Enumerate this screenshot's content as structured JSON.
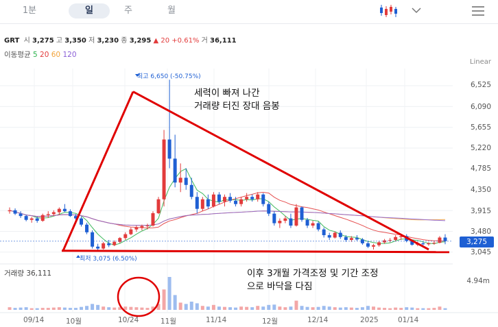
{
  "toolbar": {
    "tabs": [
      "1분",
      "일",
      "주",
      "월"
    ],
    "active": "일",
    "chart_type_icon": "candlestick-icon",
    "dropdown_icon": "chevron-down-icon",
    "menu_icon": "hamburger-icon"
  },
  "info": {
    "ticker": "GRT",
    "open_label": "시",
    "open": "3,275",
    "high_label": "고",
    "high": "3,350",
    "low_label": "저",
    "low": "3,230",
    "close_label": "종",
    "close": "3,295",
    "change": "▲ 20 +0.61%",
    "volume_label": "거",
    "volume": "36,111"
  },
  "ma_legend": {
    "title": "이동평균",
    "periods": [
      "5",
      "20",
      "60",
      "120"
    ],
    "colors": [
      "#2bb24c",
      "#e23b3b",
      "#f2a33a",
      "#8a5fd6"
    ]
  },
  "scale_mode": "Linear",
  "current_price": "3,275",
  "volume_header": "거래량 36,111",
  "volume_scale": "4.94m",
  "highest_label": "최고 6,650 (-50.75%)",
  "lowest_label": "최저 3,075 (6.50%)",
  "annotations": {
    "top": [
      "세력이 빠져 나간",
      "거래량 터진 장대 음봉"
    ],
    "bottom": [
      "이후 3개월 가격조정 및 기간 조정",
      "으로 바닥을 다짐"
    ]
  },
  "chart_data": {
    "type": "candlestick",
    "yticks": [
      "6,525",
      "6,090",
      "5,655",
      "5,220",
      "4,785",
      "4,350",
      "3,915",
      "3,480",
      "3,045"
    ],
    "ylim": [
      2900,
      6800
    ],
    "xticks": [
      "09/14",
      "10월",
      "10/24",
      "11월",
      "11/14",
      "12월",
      "12/14",
      "2025",
      "01/14"
    ],
    "candles_ohlc": [
      [
        3900,
        3980,
        3850,
        3920
      ],
      [
        3920,
        3960,
        3820,
        3850
      ],
      [
        3850,
        3900,
        3760,
        3800
      ],
      [
        3800,
        3830,
        3690,
        3720
      ],
      [
        3720,
        3780,
        3660,
        3750
      ],
      [
        3750,
        3790,
        3660,
        3700
      ],
      [
        3700,
        3850,
        3680,
        3820
      ],
      [
        3820,
        3900,
        3760,
        3840
      ],
      [
        3840,
        3920,
        3800,
        3880
      ],
      [
        3880,
        3980,
        3820,
        3950
      ],
      [
        3950,
        4050,
        3880,
        3900
      ],
      [
        3900,
        3940,
        3780,
        3800
      ],
      [
        3800,
        3840,
        3700,
        3750
      ],
      [
        3750,
        3790,
        3580,
        3620
      ],
      [
        3620,
        3660,
        3420,
        3460
      ],
      [
        3460,
        3500,
        3120,
        3160
      ],
      [
        3160,
        3220,
        3075,
        3120
      ],
      [
        3120,
        3260,
        3100,
        3230
      ],
      [
        3230,
        3300,
        3150,
        3190
      ],
      [
        3190,
        3290,
        3170,
        3260
      ],
      [
        3260,
        3360,
        3230,
        3340
      ],
      [
        3340,
        3460,
        3300,
        3420
      ],
      [
        3420,
        3560,
        3400,
        3520
      ],
      [
        3520,
        3600,
        3470,
        3560
      ],
      [
        3560,
        3620,
        3500,
        3590
      ],
      [
        3590,
        3640,
        3520,
        3600
      ],
      [
        3600,
        3900,
        3580,
        3860
      ],
      [
        3860,
        4200,
        3840,
        4150
      ],
      [
        4150,
        5600,
        4000,
        5400
      ],
      [
        5400,
        6650,
        4800,
        5000
      ],
      [
        5000,
        5500,
        4400,
        4500
      ],
      [
        4500,
        4900,
        4300,
        4600
      ],
      [
        4600,
        4800,
        4350,
        4450
      ],
      [
        4450,
        4600,
        4150,
        4200
      ],
      [
        4200,
        4300,
        3850,
        3950
      ],
      [
        3950,
        4200,
        3900,
        4150
      ],
      [
        4150,
        4250,
        3950,
        4000
      ],
      [
        4000,
        4300,
        3980,
        4250
      ],
      [
        4250,
        4300,
        4050,
        4100
      ],
      [
        4100,
        4250,
        4000,
        4200
      ],
      [
        4200,
        4280,
        4080,
        4120
      ],
      [
        4120,
        4200,
        4000,
        4050
      ],
      [
        4050,
        4200,
        4000,
        4150
      ],
      [
        4150,
        4280,
        4100,
        4200
      ],
      [
        4200,
        4250,
        4100,
        4150
      ],
      [
        4150,
        4300,
        4100,
        4250
      ],
      [
        4250,
        4280,
        4000,
        4050
      ],
      [
        4050,
        4100,
        3800,
        3850
      ],
      [
        3850,
        3900,
        3600,
        3650
      ],
      [
        3650,
        3750,
        3550,
        3700
      ],
      [
        3700,
        3800,
        3650,
        3750
      ],
      [
        3750,
        3850,
        3550,
        3600
      ],
      [
        3600,
        4050,
        3580,
        3980
      ],
      [
        3980,
        4000,
        3680,
        3720
      ],
      [
        3720,
        3760,
        3550,
        3600
      ],
      [
        3600,
        3700,
        3550,
        3650
      ],
      [
        3650,
        3680,
        3480,
        3520
      ],
      [
        3520,
        3560,
        3350,
        3400
      ],
      [
        3400,
        3450,
        3300,
        3350
      ],
      [
        3350,
        3480,
        3330,
        3450
      ],
      [
        3450,
        3500,
        3320,
        3360
      ],
      [
        3360,
        3400,
        3260,
        3300
      ],
      [
        3300,
        3380,
        3260,
        3340
      ],
      [
        3340,
        3400,
        3280,
        3310
      ],
      [
        3310,
        3340,
        3200,
        3230
      ],
      [
        3230,
        3280,
        3130,
        3160
      ],
      [
        3160,
        3220,
        3100,
        3190
      ],
      [
        3190,
        3280,
        3160,
        3250
      ],
      [
        3250,
        3320,
        3220,
        3290
      ],
      [
        3290,
        3340,
        3250,
        3300
      ],
      [
        3300,
        3400,
        3270,
        3360
      ],
      [
        3360,
        3420,
        3300,
        3380
      ],
      [
        3380,
        3420,
        3250,
        3280
      ],
      [
        3280,
        3300,
        3180,
        3200
      ],
      [
        3200,
        3260,
        3170,
        3230
      ],
      [
        3230,
        3260,
        3190,
        3210
      ],
      [
        3210,
        3250,
        3180,
        3230
      ],
      [
        3230,
        3270,
        3200,
        3240
      ],
      [
        3240,
        3380,
        3230,
        3350
      ],
      [
        3350,
        3420,
        3210,
        3275
      ]
    ],
    "volume_relative": [
      0.08,
      0.06,
      0.07,
      0.08,
      0.05,
      0.05,
      0.06,
      0.06,
      0.07,
      0.08,
      0.07,
      0.06,
      0.06,
      0.09,
      0.12,
      0.18,
      0.15,
      0.1,
      0.08,
      0.07,
      0.08,
      0.1,
      0.09,
      0.08,
      0.07,
      0.06,
      0.1,
      0.18,
      0.62,
      1.0,
      0.45,
      0.22,
      0.18,
      0.25,
      0.2,
      0.12,
      0.1,
      0.15,
      0.1,
      0.09,
      0.08,
      0.07,
      0.1,
      0.09,
      0.08,
      0.12,
      0.1,
      0.15,
      0.16,
      0.1,
      0.08,
      0.1,
      0.28,
      0.12,
      0.09,
      0.08,
      0.09,
      0.12,
      0.1,
      0.08,
      0.07,
      0.08,
      0.07,
      0.06,
      0.08,
      0.12,
      0.1,
      0.07,
      0.06,
      0.05,
      0.07,
      0.06,
      0.08,
      0.07,
      0.05,
      0.05,
      0.05,
      0.06,
      0.1,
      0.05
    ],
    "moving_averages": [
      {
        "name": "5",
        "color": "#2bb24c"
      },
      {
        "name": "20",
        "color": "#e23b3b"
      },
      {
        "name": "60",
        "color": "#f2a33a"
      },
      {
        "name": "120",
        "color": "#8a5fd6"
      }
    ],
    "overlay": {
      "triangle_color": "#e00000",
      "circle_color": "#e00000",
      "support_level": 3075,
      "triangle_apex_price": 6400
    }
  }
}
